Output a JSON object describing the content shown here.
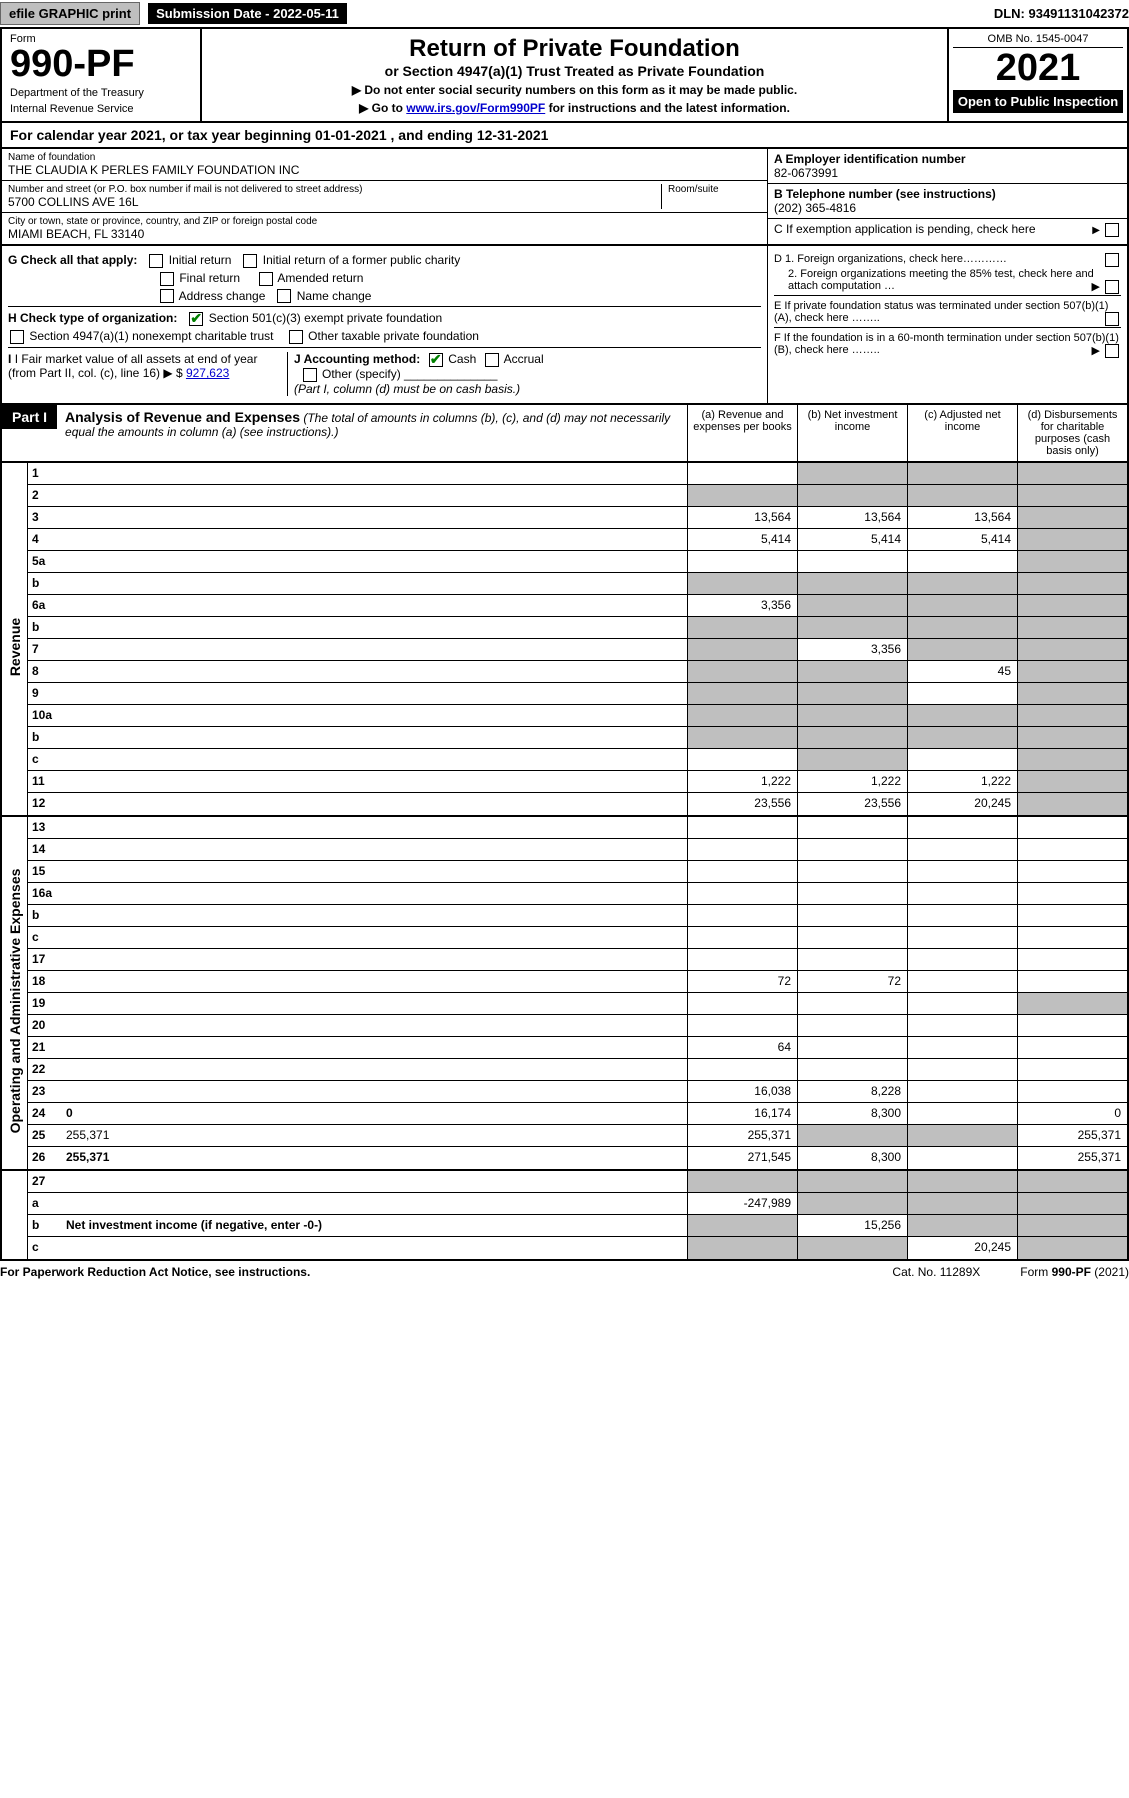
{
  "topbar": {
    "efile": "efile GRAPHIC print",
    "subdate": "Submission Date - 2022-05-11",
    "dln": "DLN: 93491131042372"
  },
  "header": {
    "form": "Form",
    "num": "990-PF",
    "dept1": "Department of the Treasury",
    "dept2": "Internal Revenue Service",
    "title": "Return of Private Foundation",
    "subtitle": "or Section 4947(a)(1) Trust Treated as Private Foundation",
    "note1": "▶ Do not enter social security numbers on this form as it may be made public.",
    "note2_pre": "▶ Go to ",
    "note2_link": "www.irs.gov/Form990PF",
    "note2_post": " for instructions and the latest information.",
    "omb": "OMB No. 1545-0047",
    "year": "2021",
    "open": "Open to Public Inspection"
  },
  "calyear": "For calendar year 2021, or tax year beginning 01-01-2021            , and ending 12-31-2021",
  "entity": {
    "name_lbl": "Name of foundation",
    "name": "THE CLAUDIA K PERLES FAMILY FOUNDATION INC",
    "addr_lbl": "Number and street (or P.O. box number if mail is not delivered to street address)",
    "addr": "5700 COLLINS AVE 16L",
    "room_lbl": "Room/suite",
    "city_lbl": "City or town, state or province, country, and ZIP or foreign postal code",
    "city": "MIAMI BEACH, FL  33140",
    "a_lbl": "A Employer identification number",
    "a_val": "82-0673991",
    "b_lbl": "B Telephone number (see instructions)",
    "b_val": "(202) 365-4816",
    "c_lbl": "C If exemption application is pending, check here",
    "d1": "D 1. Foreign organizations, check here…………",
    "d2": "2. Foreign organizations meeting the 85% test, check here and attach computation …",
    "e": "E  If private foundation status was terminated under section 507(b)(1)(A), check here ……..",
    "f": "F  If the foundation is in a 60-month termination under section 507(b)(1)(B), check here …….."
  },
  "ghj": {
    "g_lbl": "G Check all that apply:",
    "g_initial": "Initial return",
    "g_initial_former": "Initial return of a former public charity",
    "g_final": "Final return",
    "g_amended": "Amended return",
    "g_addr": "Address change",
    "g_name": "Name change",
    "h_lbl": "H Check type of organization:",
    "h_501c3": "Section 501(c)(3) exempt private foundation",
    "h_4947": "Section 4947(a)(1) nonexempt charitable trust",
    "h_other_tax": "Other taxable private foundation",
    "i_lbl": "I Fair market value of all assets at end of year (from Part II, col. (c), line 16)",
    "i_val": "927,623",
    "j_lbl": "J Accounting method:",
    "j_cash": "Cash",
    "j_accrual": "Accrual",
    "j_other": "Other (specify)",
    "j_note": "(Part I, column (d) must be on cash basis.)"
  },
  "part1": {
    "tag": "Part I",
    "title": "Analysis of Revenue and Expenses",
    "note": " (The total of amounts in columns (b), (c), and (d) may not necessarily equal the amounts in column (a) (see instructions).)",
    "col_a": "(a)  Revenue and expenses per books",
    "col_b": "(b)  Net investment income",
    "col_c": "(c)  Adjusted net income",
    "col_d": "(d)  Disbursements for charitable purposes (cash basis only)"
  },
  "side": {
    "revenue": "Revenue",
    "opex": "Operating and Administrative Expenses"
  },
  "rows": [
    {
      "n": "1",
      "d": "",
      "a": "",
      "b": "",
      "c": "",
      "gb": true,
      "gc": true,
      "gd": true
    },
    {
      "n": "2",
      "d": "",
      "a": "",
      "b": "",
      "c": "",
      "ga": true,
      "gb": true,
      "gc": true,
      "gd": true,
      "bold_not": true
    },
    {
      "n": "3",
      "d": "",
      "a": "13,564",
      "b": "13,564",
      "c": "13,564",
      "gd": true
    },
    {
      "n": "4",
      "d": "",
      "a": "5,414",
      "b": "5,414",
      "c": "5,414",
      "gd": true
    },
    {
      "n": "5a",
      "d": "",
      "a": "",
      "b": "",
      "c": "",
      "gd": true
    },
    {
      "n": "b",
      "d": "",
      "a": "",
      "b": "",
      "c": "",
      "ga": true,
      "gb": true,
      "gc": true,
      "gd": true
    },
    {
      "n": "6a",
      "d": "",
      "a": "3,356",
      "b": "",
      "c": "",
      "gb": true,
      "gc": true,
      "gd": true
    },
    {
      "n": "b",
      "d": "",
      "a": "",
      "b": "",
      "c": "",
      "ga": true,
      "gb": true,
      "gc": true,
      "gd": true
    },
    {
      "n": "7",
      "d": "",
      "a": "",
      "b": "3,356",
      "c": "",
      "ga": true,
      "gc": true,
      "gd": true
    },
    {
      "n": "8",
      "d": "",
      "a": "",
      "b": "",
      "c": "45",
      "ga": true,
      "gb": true,
      "gd": true
    },
    {
      "n": "9",
      "d": "",
      "a": "",
      "b": "",
      "c": "",
      "ga": true,
      "gb": true,
      "gd": true
    },
    {
      "n": "10a",
      "d": "",
      "a": "",
      "b": "",
      "c": "",
      "ga": true,
      "gb": true,
      "gc": true,
      "gd": true
    },
    {
      "n": "b",
      "d": "",
      "a": "",
      "b": "",
      "c": "",
      "ga": true,
      "gb": true,
      "gc": true,
      "gd": true
    },
    {
      "n": "c",
      "d": "",
      "a": "",
      "b": "",
      "c": "",
      "gb": true,
      "gd": true
    },
    {
      "n": "11",
      "d": "",
      "a": "1,222",
      "b": "1,222",
      "c": "1,222",
      "gd": true
    },
    {
      "n": "12",
      "d": "",
      "a": "23,556",
      "b": "23,556",
      "c": "20,245",
      "gd": true,
      "bold": true
    }
  ],
  "rows2": [
    {
      "n": "13",
      "d": "",
      "a": "",
      "b": "",
      "c": ""
    },
    {
      "n": "14",
      "d": "",
      "a": "",
      "b": "",
      "c": ""
    },
    {
      "n": "15",
      "d": "",
      "a": "",
      "b": "",
      "c": ""
    },
    {
      "n": "16a",
      "d": "",
      "a": "",
      "b": "",
      "c": ""
    },
    {
      "n": "b",
      "d": "",
      "a": "",
      "b": "",
      "c": ""
    },
    {
      "n": "c",
      "d": "",
      "a": "",
      "b": "",
      "c": ""
    },
    {
      "n": "17",
      "d": "",
      "a": "",
      "b": "",
      "c": ""
    },
    {
      "n": "18",
      "d": "",
      "a": "72",
      "b": "72",
      "c": ""
    },
    {
      "n": "19",
      "d": "",
      "a": "",
      "b": "",
      "c": "",
      "gd": true
    },
    {
      "n": "20",
      "d": "",
      "a": "",
      "b": "",
      "c": ""
    },
    {
      "n": "21",
      "d": "",
      "a": "64",
      "b": "",
      "c": ""
    },
    {
      "n": "22",
      "d": "",
      "a": "",
      "b": "",
      "c": ""
    },
    {
      "n": "23",
      "d": "",
      "a": "16,038",
      "b": "8,228",
      "c": ""
    },
    {
      "n": "24",
      "d": "0",
      "a": "16,174",
      "b": "8,300",
      "c": "",
      "bold": true
    },
    {
      "n": "25",
      "d": "255,371",
      "a": "255,371",
      "b": "",
      "c": "",
      "gb": true,
      "gc": true
    },
    {
      "n": "26",
      "d": "255,371",
      "a": "271,545",
      "b": "8,300",
      "c": "",
      "bold": true
    }
  ],
  "rows3": [
    {
      "n": "27",
      "d": "",
      "a": "",
      "b": "",
      "c": "",
      "ga": true,
      "gb": true,
      "gc": true,
      "gd": true
    },
    {
      "n": "a",
      "d": "",
      "a": "-247,989",
      "b": "",
      "c": "",
      "gb": true,
      "gc": true,
      "gd": true,
      "bold": true
    },
    {
      "n": "b",
      "d": "",
      "a": "",
      "b": "15,256",
      "c": "",
      "ga": true,
      "gc": true,
      "gd": true,
      "bold": true,
      "desc_override": "Net investment income (if negative, enter -0-)"
    },
    {
      "n": "c",
      "d": "",
      "a": "",
      "b": "",
      "c": "20,245",
      "ga": true,
      "gb": true,
      "gd": true,
      "bold": true
    }
  ],
  "footer": {
    "left": "For Paperwork Reduction Act Notice, see instructions.",
    "mid": "Cat. No. 11289X",
    "right": "Form 990-PF (2021)"
  }
}
